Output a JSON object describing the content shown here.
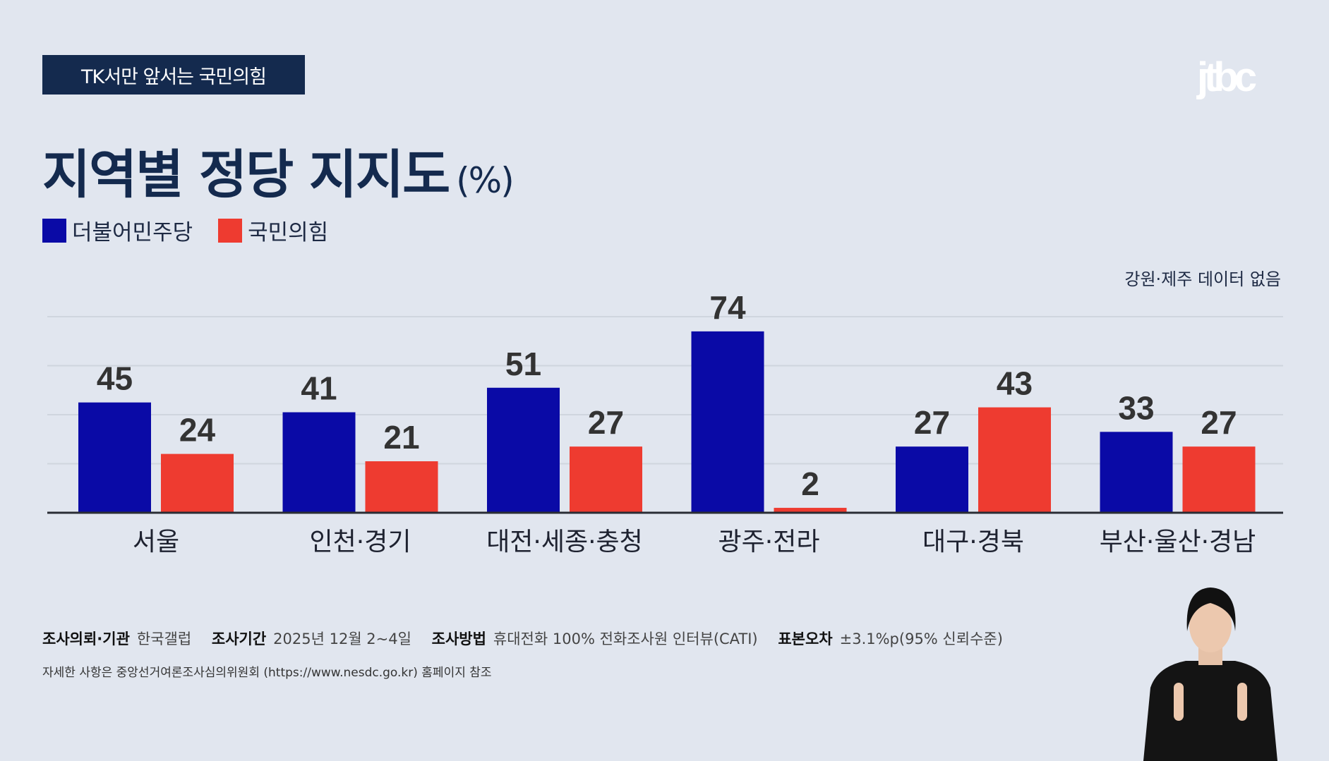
{
  "badge": "TK서만 앞서는 국민의힘",
  "logo": "jtbc",
  "title": "지역별 정당 지지도",
  "title_unit": "(%)",
  "note": "강원·제주 데이터 없음",
  "colors": {
    "democratic": "#0a0aa6",
    "ppp": "#ee3b30",
    "background": "#e1e6ef",
    "title": "#142a4e"
  },
  "chart_data": {
    "type": "bar",
    "title": "지역별 정당 지지도",
    "unit": "%",
    "categories": [
      "서울",
      "인천·경기",
      "대전·세종·충청",
      "광주·전라",
      "대구·경북",
      "부산·울산·경남"
    ],
    "series": [
      {
        "name": "더불어민주당",
        "color": "#0a0aa6",
        "values": [
          45,
          41,
          51,
          74,
          27,
          33
        ]
      },
      {
        "name": "국민의힘",
        "color": "#ee3b30",
        "values": [
          24,
          21,
          27,
          2,
          43,
          27
        ]
      }
    ],
    "ylim": [
      0,
      80
    ],
    "gridlines": [
      20,
      40,
      60,
      80
    ],
    "grid": true,
    "legend": "top-left"
  },
  "footer": {
    "items": [
      {
        "label": "조사의뢰·기관",
        "value": "한국갤럽"
      },
      {
        "label": "조사기간",
        "value": "2025년 12월 2~4일"
      },
      {
        "label": "조사방법",
        "value": "휴대전화 100% 전화조사원 인터뷰(CATI)"
      },
      {
        "label": "표본오차",
        "value": "±3.1%p(95% 신뢰수준)"
      }
    ],
    "source_note": "자세한 사항은 중앙선거여론조사심의위원회 (https://www.nesdc.go.kr) 홈페이지 참조"
  }
}
